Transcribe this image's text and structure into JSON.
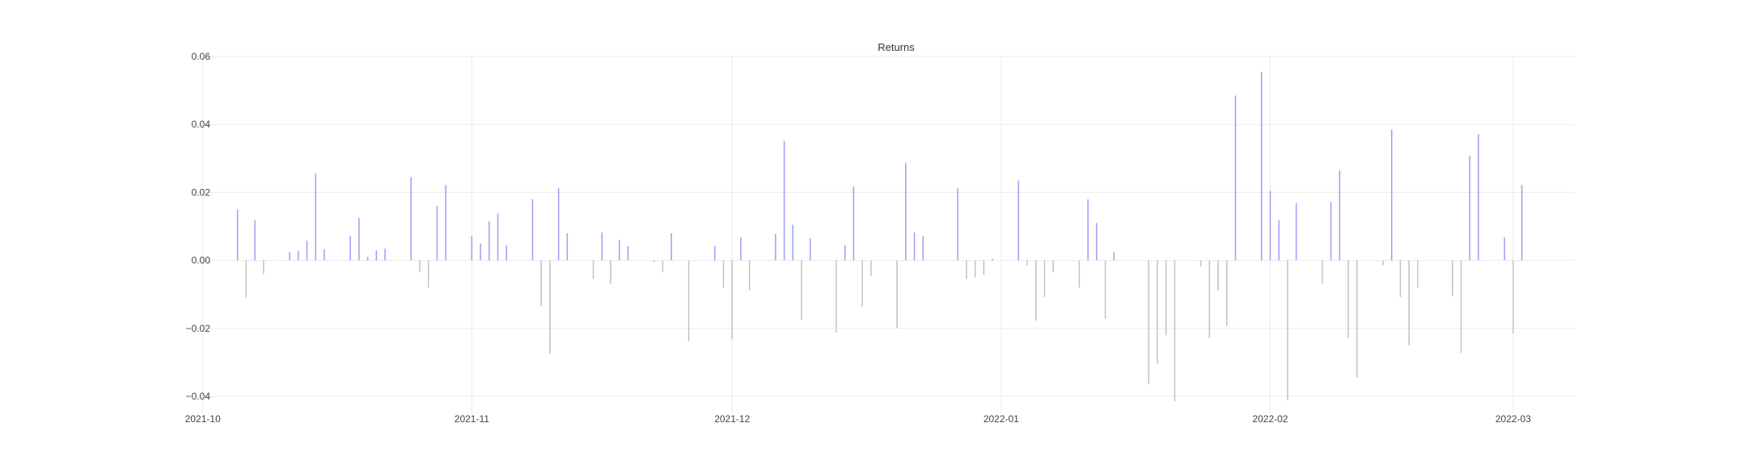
{
  "chart_data": {
    "type": "bar",
    "title": "Returns",
    "xlabel": "",
    "ylabel": "",
    "ylim": [
      -0.045,
      0.06
    ],
    "xlim": [
      "2021-09-30",
      "2022-03-08"
    ],
    "y_ticks": [
      {
        "value": -0.04,
        "label": "−0.04"
      },
      {
        "value": -0.02,
        "label": "−0.02"
      },
      {
        "value": 0.0,
        "label": "0.00"
      },
      {
        "value": 0.02,
        "label": "0.02"
      },
      {
        "value": 0.04,
        "label": "0.04"
      },
      {
        "value": 0.06,
        "label": "0.06"
      }
    ],
    "x_ticks": [
      {
        "value": "2021-10-01",
        "label": "2021-10"
      },
      {
        "value": "2021-11-01",
        "label": "2021-11"
      },
      {
        "value": "2021-12-01",
        "label": "2021-12"
      },
      {
        "value": "2022-01-01",
        "label": "2022-01"
      },
      {
        "value": "2022-02-01",
        "label": "2022-02"
      },
      {
        "value": "2022-03-01",
        "label": "2022-03"
      }
    ],
    "grid": true,
    "colors": {
      "positive": "#9d9df5",
      "negative": "#c2c2c2",
      "grid": "#ebebeb",
      "text": "#444444"
    },
    "x": [
      "2021-10-05",
      "2021-10-06",
      "2021-10-07",
      "2021-10-08",
      "2021-10-11",
      "2021-10-12",
      "2021-10-13",
      "2021-10-14",
      "2021-10-15",
      "2021-10-18",
      "2021-10-19",
      "2021-10-20",
      "2021-10-21",
      "2021-10-22",
      "2021-10-25",
      "2021-10-26",
      "2021-10-27",
      "2021-10-28",
      "2021-10-29",
      "2021-11-01",
      "2021-11-02",
      "2021-11-03",
      "2021-11-04",
      "2021-11-05",
      "2021-11-08",
      "2021-11-09",
      "2021-11-10",
      "2021-11-11",
      "2021-11-12",
      "2021-11-15",
      "2021-11-16",
      "2021-11-17",
      "2021-11-18",
      "2021-11-19",
      "2021-11-22",
      "2021-11-23",
      "2021-11-24",
      "2021-11-26",
      "2021-11-29",
      "2021-11-30",
      "2021-12-01",
      "2021-12-02",
      "2021-12-03",
      "2021-12-06",
      "2021-12-07",
      "2021-12-08",
      "2021-12-09",
      "2021-12-10",
      "2021-12-13",
      "2021-12-14",
      "2021-12-15",
      "2021-12-16",
      "2021-12-17",
      "2021-12-20",
      "2021-12-21",
      "2021-12-22",
      "2021-12-23",
      "2021-12-27",
      "2021-12-28",
      "2021-12-29",
      "2021-12-30",
      "2021-12-31",
      "2022-01-03",
      "2022-01-04",
      "2022-01-05",
      "2022-01-06",
      "2022-01-07",
      "2022-01-10",
      "2022-01-11",
      "2022-01-12",
      "2022-01-13",
      "2022-01-14",
      "2022-01-18",
      "2022-01-19",
      "2022-01-20",
      "2022-01-21",
      "2022-01-24",
      "2022-01-25",
      "2022-01-26",
      "2022-01-27",
      "2022-01-28",
      "2022-01-31",
      "2022-02-01",
      "2022-02-02",
      "2022-02-03",
      "2022-02-04",
      "2022-02-07",
      "2022-02-08",
      "2022-02-09",
      "2022-02-10",
      "2022-02-11",
      "2022-02-14",
      "2022-02-15",
      "2022-02-16",
      "2022-02-17",
      "2022-02-18",
      "2022-02-22",
      "2022-02-23",
      "2022-02-24",
      "2022-02-25",
      "2022-02-28",
      "2022-03-01",
      "2022-03-02"
    ],
    "values": [
      0.015,
      -0.011,
      0.0118,
      -0.004,
      0.0025,
      0.0028,
      0.0058,
      0.0255,
      0.0033,
      0.0072,
      0.0125,
      0.001,
      0.003,
      0.0035,
      0.0245,
      -0.0035,
      -0.008,
      0.016,
      0.0222,
      0.0072,
      0.005,
      0.0115,
      0.0138,
      0.0045,
      0.018,
      -0.0135,
      -0.0275,
      0.0212,
      0.008,
      -0.0055,
      0.0082,
      -0.007,
      0.006,
      0.0042,
      -0.0005,
      -0.0035,
      0.008,
      -0.0238,
      0.0042,
      -0.008,
      -0.0232,
      0.0068,
      -0.0088,
      0.0078,
      0.0352,
      0.0105,
      -0.0175,
      0.0065,
      -0.0212,
      0.0045,
      0.0218,
      -0.0135,
      -0.0045,
      -0.02,
      0.0288,
      0.0082,
      0.0072,
      0.0212,
      -0.0055,
      -0.005,
      -0.0042,
      0.0005,
      0.0235,
      -0.0015,
      -0.0178,
      -0.0108,
      -0.0035,
      -0.008,
      0.018,
      0.011,
      -0.0172,
      0.0025,
      -0.0365,
      -0.0305,
      -0.022,
      -0.0415,
      -0.0018,
      -0.0228,
      -0.0088,
      -0.0192,
      0.0485,
      0.0555,
      0.0205,
      0.0118,
      -0.0412,
      0.0168,
      -0.0068,
      0.0172,
      0.0265,
      -0.0228,
      -0.0345,
      -0.0015,
      0.0385,
      -0.0108,
      -0.025,
      -0.008,
      -0.0105,
      -0.0272,
      0.0308,
      0.0372,
      0.0068,
      -0.0215,
      0.0222
    ]
  }
}
